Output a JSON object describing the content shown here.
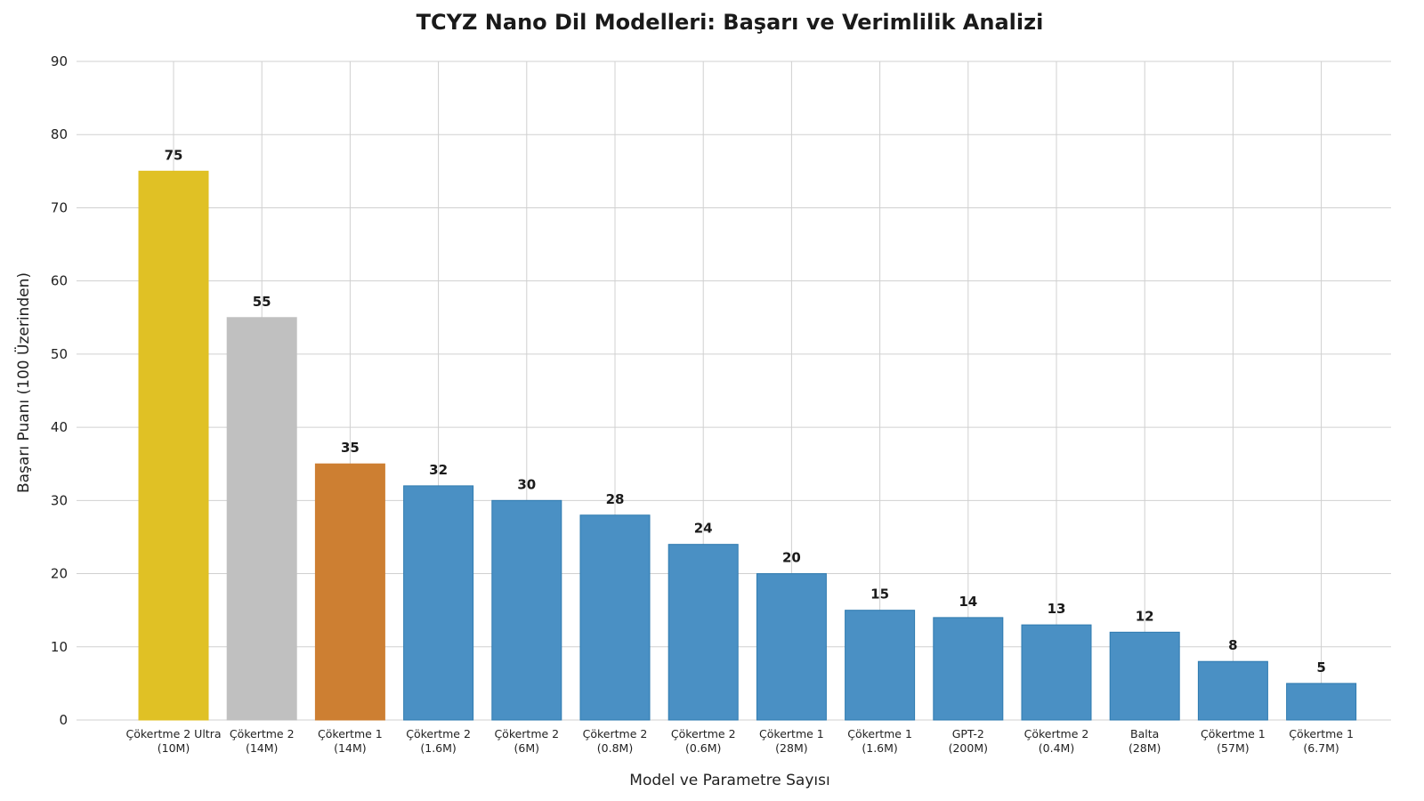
{
  "chart_data": {
    "type": "bar",
    "title": "TCYZ Nano Dil Modelleri: Başarı ve Verimlilik Analizi",
    "xlabel": "Model ve Parametre Sayısı",
    "ylabel": "Başarı Puanı (100 Üzerinden)",
    "ylim": [
      0,
      90
    ],
    "yticks": [
      0,
      10,
      20,
      30,
      40,
      50,
      60,
      70,
      80,
      90
    ],
    "grid": true,
    "categories": [
      [
        "Çökertme 2 Ultra",
        "(10M)"
      ],
      [
        "Çökertme 2",
        "(14M)"
      ],
      [
        "Çökertme 1",
        "(14M)"
      ],
      [
        "Çökertme 2",
        "(1.6M)"
      ],
      [
        "Çökertme 2",
        "(6M)"
      ],
      [
        "Çökertme 2",
        "(0.8M)"
      ],
      [
        "Çökertme 2",
        "(0.6M)"
      ],
      [
        "Çökertme 1",
        "(28M)"
      ],
      [
        "Çökertme 1",
        "(1.6M)"
      ],
      [
        "GPT-2",
        "(200M)"
      ],
      [
        "Çökertme 2",
        "(0.4M)"
      ],
      [
        "Balta",
        "(28M)"
      ],
      [
        "Çökertme 1",
        "(57M)"
      ],
      [
        "Çökertme 1",
        "(6.7M)"
      ]
    ],
    "values": [
      75,
      55,
      35,
      32,
      30,
      28,
      24,
      20,
      15,
      14,
      13,
      12,
      8,
      5
    ],
    "colors": [
      "#e0c125",
      "#c0c0c0",
      "#cd7f32",
      "#4a90c4",
      "#4a90c4",
      "#4a90c4",
      "#4a90c4",
      "#4a90c4",
      "#4a90c4",
      "#4a90c4",
      "#4a90c4",
      "#4a90c4",
      "#4a90c4",
      "#4a90c4"
    ]
  }
}
